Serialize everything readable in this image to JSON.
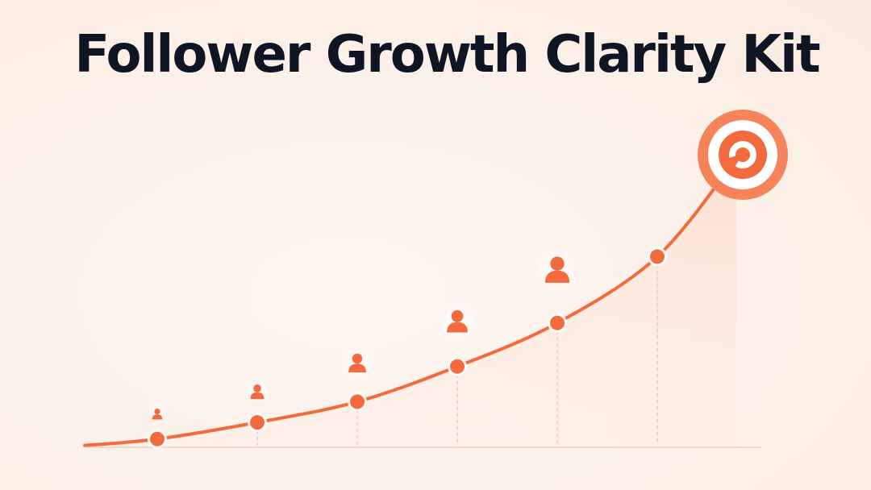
{
  "title": "Follower Growth Clarity Kit",
  "colors": {
    "accent": "#f26a3d",
    "accent_light": "#f9a27f",
    "title": "#0f1525",
    "background": "#fdf3ec",
    "baseline": "#f0d9cb"
  },
  "chart_data": {
    "type": "line",
    "title": "Follower Growth Clarity Kit",
    "xlabel": "",
    "ylabel": "",
    "grid": false,
    "legend": "none",
    "x": [
      1,
      2,
      3,
      4,
      5,
      6
    ],
    "series": [
      {
        "values": [
          4,
          12,
          22,
          39,
          60,
          92
        ]
      }
    ],
    "ylim": [
      0,
      140
    ],
    "goal_marker": "target-icon",
    "point_markers": "person-icon"
  }
}
